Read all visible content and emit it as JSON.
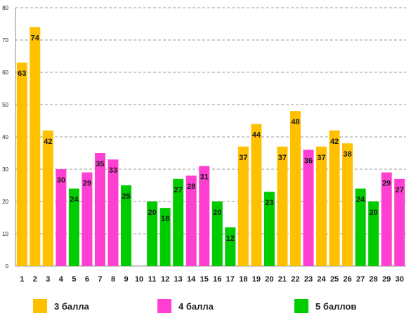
{
  "chart_data": {
    "type": "bar",
    "title": "",
    "xlabel": "",
    "ylabel": "",
    "ylim": [
      0,
      80
    ],
    "yticks": [
      0,
      10,
      20,
      30,
      40,
      50,
      60,
      70,
      80
    ],
    "grid": true,
    "legend_position": "bottom",
    "categories": [
      "1",
      "2",
      "3",
      "4",
      "5",
      "6",
      "7",
      "8",
      "9",
      "10",
      "11",
      "12",
      "13",
      "14",
      "15",
      "16",
      "17",
      "18",
      "19",
      "20",
      "21",
      "22",
      "23",
      "24",
      "25",
      "26",
      "27",
      "28",
      "29",
      "30"
    ],
    "values": [
      63,
      74,
      42,
      30,
      24,
      29,
      35,
      33,
      25,
      null,
      20,
      18,
      27,
      28,
      31,
      20,
      12,
      37,
      44,
      23,
      37,
      48,
      36,
      37,
      42,
      38,
      24,
      20,
      29,
      27
    ],
    "bar_groups": [
      "3",
      "3",
      "3",
      "4",
      "5",
      "4",
      "4",
      "4",
      "5",
      null,
      "5",
      "5",
      "5",
      "4",
      "4",
      "5",
      "5",
      "3",
      "3",
      "5",
      "3",
      "3",
      "4",
      "3",
      "3",
      "3",
      "5",
      "5",
      "4",
      "4"
    ],
    "legend": [
      {
        "key": "3",
        "label": "3 балла",
        "color": "#FFC000"
      },
      {
        "key": "4",
        "label": "4 балла",
        "color": "#FF3FD2"
      },
      {
        "key": "5",
        "label": "5 баллов",
        "color": "#00CC00"
      }
    ]
  }
}
